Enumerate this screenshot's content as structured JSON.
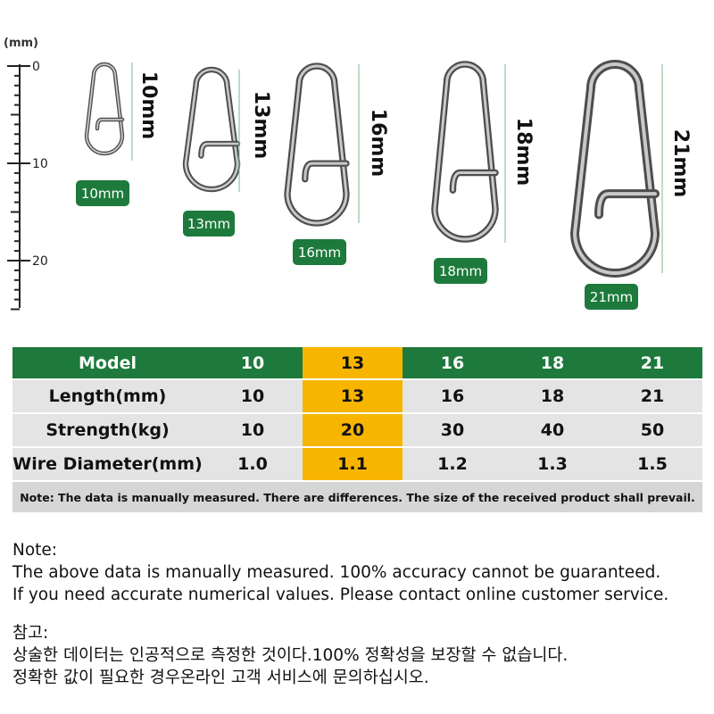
{
  "ruler": {
    "unit": "(mm)",
    "ticks": [
      "0",
      "10",
      "20"
    ]
  },
  "items": [
    {
      "label": "10mm",
      "badge": "10mm"
    },
    {
      "label": "13mm",
      "badge": "13mm"
    },
    {
      "label": "16mm",
      "badge": "16mm"
    },
    {
      "label": "18mm",
      "badge": "18mm"
    },
    {
      "label": "21mm",
      "badge": "21mm"
    }
  ],
  "table": {
    "header": [
      "Model",
      "10",
      "13",
      "16",
      "18",
      "21"
    ],
    "rows": [
      [
        "Length(mm)",
        "10",
        "13",
        "16",
        "18",
        "21"
      ],
      [
        "Strength(kg)",
        "10",
        "20",
        "30",
        "40",
        "50"
      ],
      [
        "Wire Diameter(mm)",
        "1.0",
        "1.1",
        "1.2",
        "1.3",
        "1.5"
      ]
    ],
    "note": "Note: The data is manually measured. There are differences. The size of the received product shall prevail."
  },
  "notes": {
    "english": {
      "title": "Note:",
      "lines": [
        "The above data is manually measured. 100% accuracy cannot be guaranteed.",
        "If you need accurate numerical values. Please contact online customer service."
      ]
    },
    "korean": {
      "title": "참고:",
      "lines": [
        "상술한 데이터는 인공적으로 측정한 것이다.100% 정확성을 보장할 수 없습니다.",
        "정확한 값이 필요한 경우온라인 고객 서비스에 문의하십시오."
      ]
    }
  }
}
